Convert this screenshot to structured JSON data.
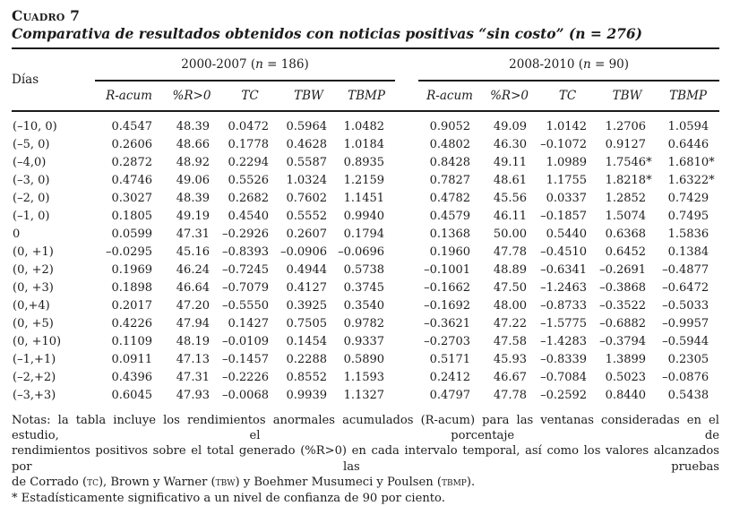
{
  "title": "Cuadro 7",
  "subtitle": "Comparativa de resultados obtenidos con noticias positivas “sin costo” (n = 276)",
  "dias_header": "Días",
  "groups": [
    {
      "label_pre": "2000-2007 (",
      "label_n": "n",
      "label_post": " = 186)"
    },
    {
      "label_pre": "2008-2010 (",
      "label_n": "n",
      "label_post": " = 90)"
    }
  ],
  "col_headers": [
    "R-acum",
    "%R>0",
    "TC",
    "TBW",
    "TBMP"
  ],
  "rows": [
    {
      "dias": "(–10, 0)",
      "v": [
        "0.4547",
        "48.39",
        "0.0472",
        "0.5964",
        "1.0482",
        "0.9052",
        "49.09",
        "1.0142",
        "1.2706",
        "1.0594"
      ]
    },
    {
      "dias": "(–5, 0)",
      "v": [
        "0.2606",
        "48.66",
        "0.1778",
        "0.4628",
        "1.0184",
        "0.4802",
        "46.30",
        "–0.1072",
        "0.9127",
        "0.6446"
      ]
    },
    {
      "dias": "(–4,0)",
      "v": [
        "0.2872",
        "48.92",
        "0.2294",
        "0.5587",
        "0.8935",
        "0.8428",
        "49.11",
        "1.0989",
        "1.7546*",
        "1.6810*"
      ]
    },
    {
      "dias": "(–3, 0)",
      "v": [
        "0.4746",
        "49.06",
        "0.5526",
        "1.0324",
        "1.2159",
        "0.7827",
        "48.61",
        "1.1755",
        "1.8218*",
        "1.6322*"
      ]
    },
    {
      "dias": "(–2, 0)",
      "v": [
        "0.3027",
        "48.39",
        "0.2682",
        "0.7602",
        "1.1451",
        "0.4782",
        "45.56",
        "0.0337",
        "1.2852",
        "0.7429"
      ]
    },
    {
      "dias": "(–1, 0)",
      "v": [
        "0.1805",
        "49.19",
        "0.4540",
        "0.5552",
        "0.9940",
        "0.4579",
        "46.11",
        "–0.1857",
        "1.5074",
        "0.7495"
      ]
    },
    {
      "dias": "0",
      "v": [
        "0.0599",
        "47.31",
        "–0.2926",
        "0.2607",
        "0.1794",
        "0.1368",
        "50.00",
        "0.5440",
        "0.6368",
        "1.5836"
      ]
    },
    {
      "dias": "(0, +1)",
      "v": [
        "–0.0295",
        "45.16",
        "–0.8393",
        "–0.0906",
        "–0.0696",
        "0.1960",
        "47.78",
        "–0.4510",
        "0.6452",
        "0.1384"
      ]
    },
    {
      "dias": "(0, +2)",
      "v": [
        "0.1969",
        "46.24",
        "–0.7245",
        "0.4944",
        "0.5738",
        "–0.1001",
        "48.89",
        "–0.6341",
        "–0.2691",
        "–0.4877"
      ]
    },
    {
      "dias": "(0, +3)",
      "v": [
        "0.1898",
        "46.64",
        "–0.7079",
        "0.4127",
        "0.3745",
        "–0.1662",
        "47.50",
        "–1.2463",
        "–0.3868",
        "–0.6472"
      ]
    },
    {
      "dias": "(0,+4)",
      "v": [
        "0.2017",
        "47.20",
        "–0.5550",
        "0.3925",
        "0.3540",
        "–0.1692",
        "48.00",
        "–0.8733",
        "–0.3522",
        "–0.5033"
      ]
    },
    {
      "dias": "(0, +5)",
      "v": [
        "0.4226",
        "47.94",
        "0.1427",
        "0.7505",
        "0.9782",
        "–0.3621",
        "47.22",
        "–1.5775",
        "–0.6882",
        "–0.9957"
      ]
    },
    {
      "dias": "(0, +10)",
      "v": [
        "0.1109",
        "48.19",
        "–0.0109",
        "0.1454",
        "0.9337",
        "–0.2703",
        "47.58",
        "–1.4283",
        "–0.3794",
        "–0.5944"
      ]
    },
    {
      "dias": "(–1,+1)",
      "v": [
        "0.0911",
        "47.13",
        "–0.1457",
        "0.2288",
        "0.5890",
        "0.5171",
        "45.93",
        "–0.8339",
        "1.3899",
        "0.2305"
      ]
    },
    {
      "dias": "(–2,+2)",
      "v": [
        "0.4396",
        "47.31",
        "–0.2226",
        "0.8552",
        "1.1593",
        "0.2412",
        "46.67",
        "–0.7084",
        "0.5023",
        "–0.0876"
      ]
    },
    {
      "dias": "(–3,+3)",
      "v": [
        "0.6045",
        "47.93",
        "–0.0068",
        "0.9939",
        "1.1327",
        "0.4797",
        "47.78",
        "–0.2592",
        "0.8440",
        "0.5438"
      ]
    }
  ],
  "notes": {
    "line1": "Notas: la tabla incluye los rendimientos anormales acumulados (R-acum) para las ventanas consideradas en el estudio, el porcentaje de",
    "line2": "rendimientos positivos sobre el total generado (%R>0) en cada intervalo temporal, así como los valores alcanzados por las pruebas",
    "line3_seg1": "de Corrado (",
    "line3_tc": "tc",
    "line3_seg2": "), Brown y Warner (",
    "line3_tbw": "tbw",
    "line3_seg3": ") y Boehmer Musumeci y Poulsen (",
    "line3_tbmp": "tbmp",
    "line3_seg4": ").",
    "footnote": "* Estadísticamente significativo a un nivel de confianza de 90 por ciento."
  }
}
